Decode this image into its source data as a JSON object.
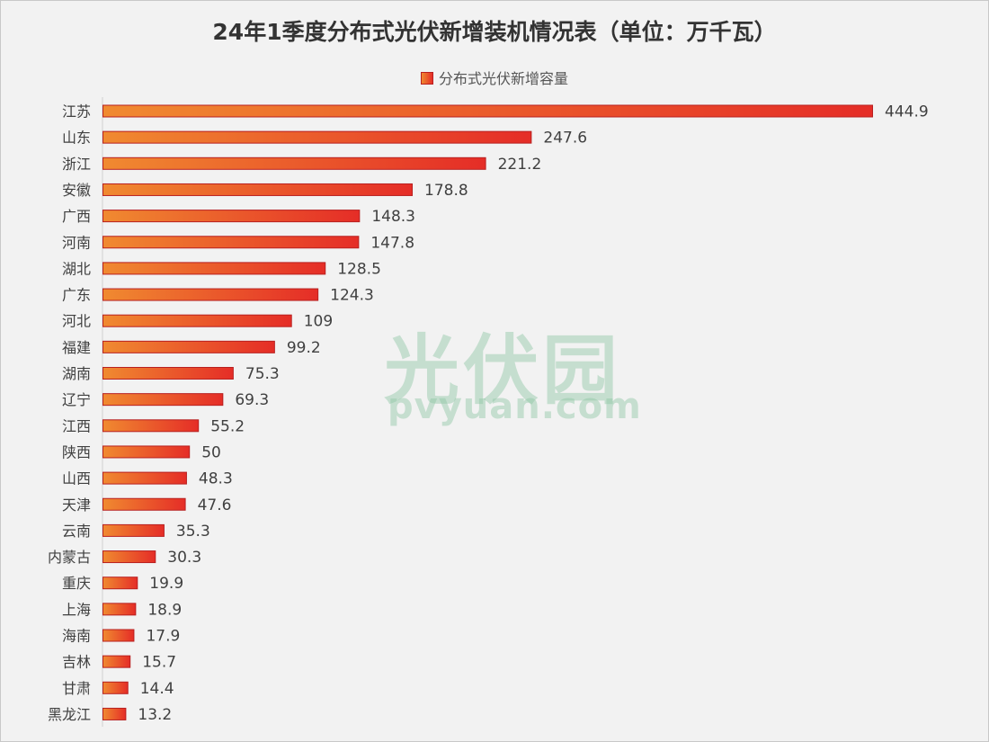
{
  "chart_data": {
    "type": "bar",
    "orientation": "horizontal",
    "title": "24年1季度分布式光伏新增装机情况表（单位：万千瓦）",
    "legend_position": "top",
    "grid": false,
    "xlim": [
      0,
      450
    ],
    "categories": [
      "江苏",
      "山东",
      "浙江",
      "安徽",
      "广西",
      "河南",
      "湖北",
      "广东",
      "河北",
      "福建",
      "湖南",
      "辽宁",
      "江西",
      "陕西",
      "山西",
      "天津",
      "云南",
      "内蒙古",
      "重庆",
      "上海",
      "海南",
      "吉林",
      "甘肃",
      "黑龙江"
    ],
    "series": [
      {
        "name": "分布式光伏新增容量",
        "values": [
          444.9,
          247.6,
          221.2,
          178.8,
          148.3,
          147.8,
          128.5,
          124.3,
          109,
          99.2,
          75.3,
          69.3,
          55.2,
          50,
          48.3,
          47.6,
          35.3,
          30.3,
          19.9,
          18.9,
          17.9,
          15.7,
          14.4,
          13.2
        ]
      }
    ],
    "colors": {
      "bar_start": "#f08a30",
      "bar_end": "#e52d27",
      "bar_border": "#b82020"
    }
  },
  "watermark": {
    "cn": "光伏园",
    "en": "pvyuan.com"
  }
}
